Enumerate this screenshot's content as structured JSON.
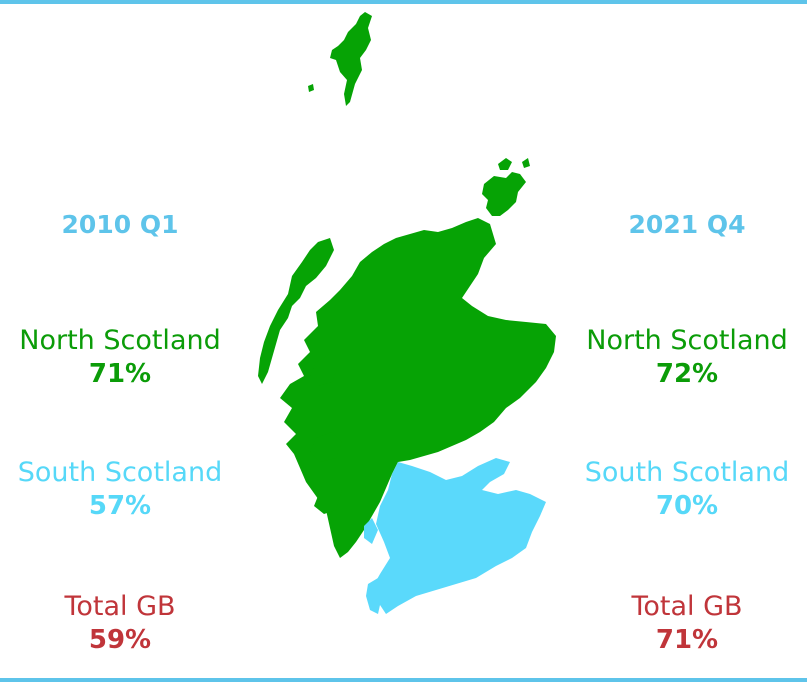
{
  "colors": {
    "frame": "#5ec4ea",
    "period": "#5ec4ea",
    "north": "#0b9c08",
    "south": "#56d8f8",
    "total": "#c0353a",
    "map_north": "#06a305",
    "map_south": "#5ad9fb"
  },
  "left": {
    "period": "2010 Q1",
    "north": {
      "name": "North Scotland",
      "value": "71%"
    },
    "south": {
      "name": "South Scotland",
      "value": "57%"
    },
    "total": {
      "name": "Total GB",
      "value": "59%"
    }
  },
  "right": {
    "period": "2021 Q4",
    "north": {
      "name": "North Scotland",
      "value": "72%"
    },
    "south": {
      "name": "South Scotland",
      "value": "70%"
    },
    "total": {
      "name": "Total GB",
      "value": "71%"
    }
  },
  "map": {
    "regions": [
      {
        "region": "North Scotland",
        "color_key": "map_north"
      },
      {
        "region": "South Scotland",
        "color_key": "map_south"
      }
    ]
  }
}
